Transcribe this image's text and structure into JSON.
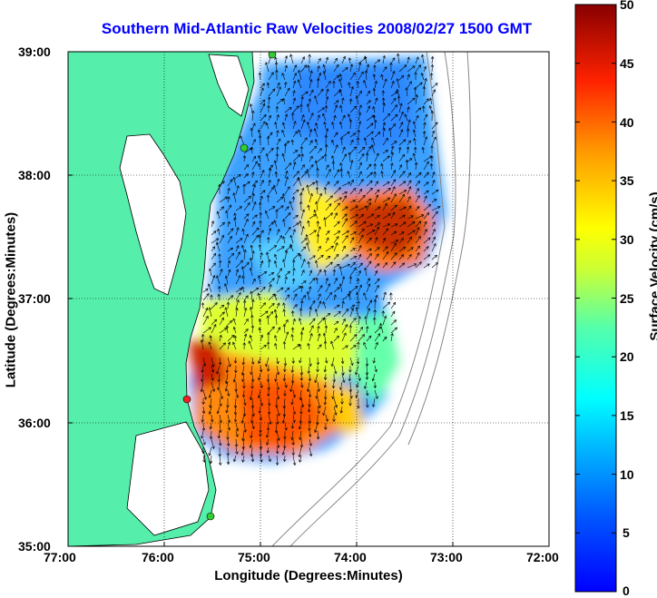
{
  "title": "Southern Mid-Atlantic Raw Velocities 2008/02/27 1500 GMT",
  "map": {
    "x_axis_label": "Longitude (Degrees:Minutes)",
    "y_axis_label": "Latitude (Degrees:Minutes)",
    "x_ticks": [
      "77:00",
      "76:00",
      "75:00",
      "74:00",
      "73:00",
      "72:00"
    ],
    "y_ticks": [
      "39:00",
      "38:00",
      "37:00",
      "36:00",
      "35:00"
    ],
    "lon_range": [
      -77,
      -72
    ],
    "lat_range": [
      35,
      39
    ],
    "grid": "dotted"
  },
  "colorbar": {
    "label": "Surface Velocity (cm/s)",
    "ticks": [
      "50",
      "45",
      "40",
      "35",
      "30",
      "25",
      "20",
      "15",
      "10",
      "5",
      "0"
    ],
    "range": [
      0,
      50
    ],
    "colormap": "jet"
  },
  "colors": {
    "title": "#0000ff",
    "land": "#55eeaa",
    "station_green": "#33cc33",
    "station_red": "#ee2222"
  }
}
